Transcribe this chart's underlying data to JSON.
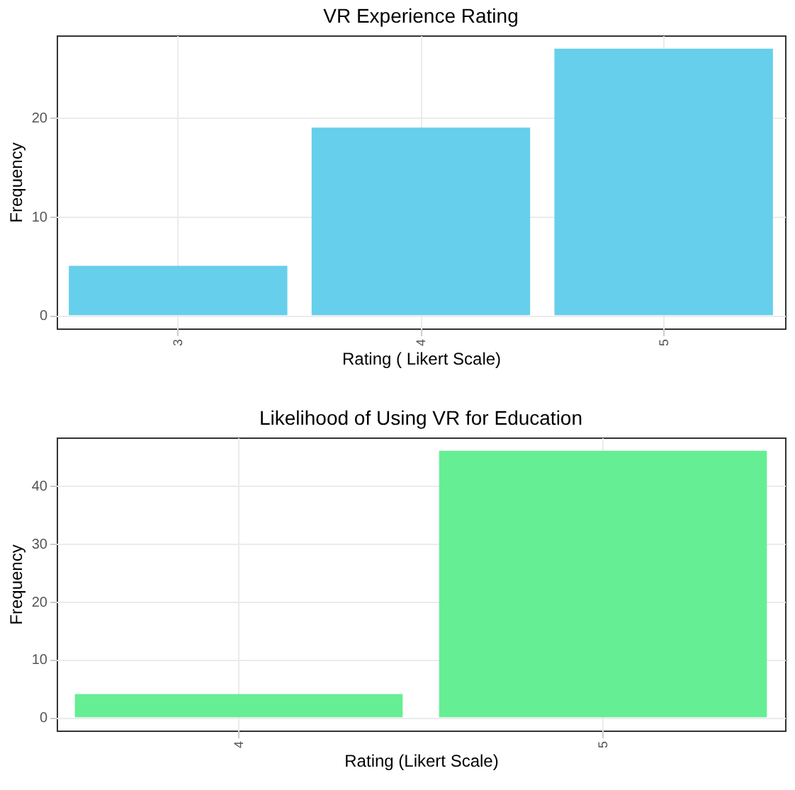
{
  "chart_data": [
    {
      "type": "bar",
      "title": "VR Experience Rating",
      "xlabel": "Rating ( Likert Scale)",
      "ylabel": "Frequency",
      "categories": [
        "3",
        "4",
        "5"
      ],
      "values": [
        5,
        19,
        27
      ],
      "color": "#66cfeb",
      "ylim": [
        -1.35,
        28.35
      ],
      "yticks": [
        0,
        10,
        20
      ],
      "grid": true
    },
    {
      "type": "bar",
      "title": "Likelihood of Using VR for Education",
      "xlabel": "Rating (Likert Scale)",
      "ylabel": "Frequency",
      "categories": [
        "4",
        "5"
      ],
      "values": [
        4,
        46
      ],
      "color": "#66ee94",
      "ylim": [
        -2.3,
        48.3
      ],
      "yticks": [
        0,
        10,
        20,
        30,
        40
      ],
      "grid": true
    }
  ]
}
